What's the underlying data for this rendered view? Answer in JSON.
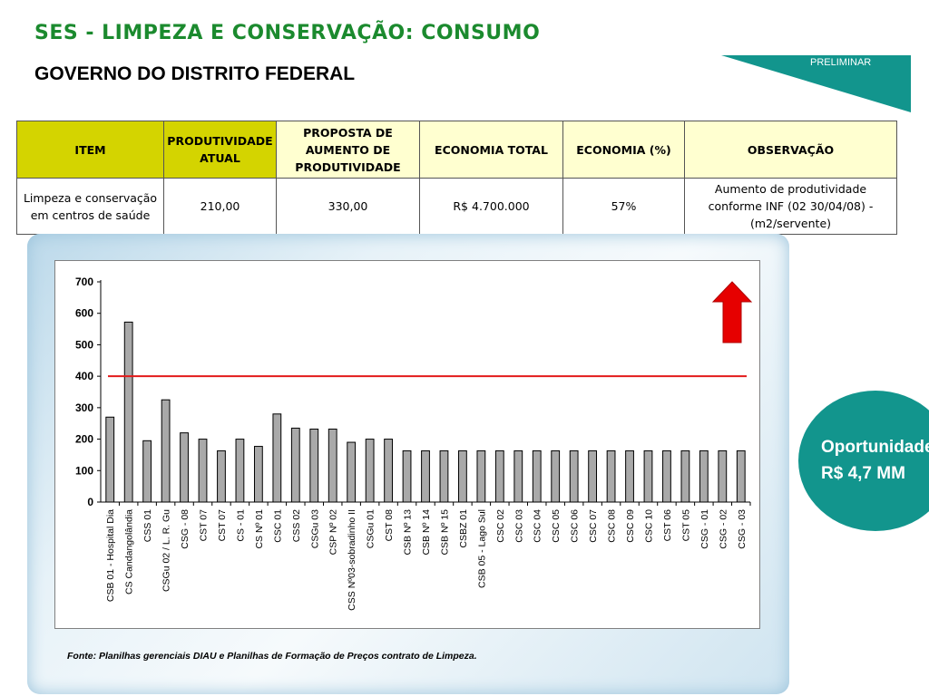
{
  "header": {
    "title": "SES - LIMPEZA E CONSERVAÇÃO: CONSUMO",
    "subtitle": "GOVERNO DO DISTRITO FEDERAL",
    "banner": "PRELIMINAR"
  },
  "colors": {
    "title_green": "#1b8a2e",
    "teal": "#12958d",
    "item_header_yellow": "#d4d400",
    "header_light_yellow": "#ffffd0",
    "target_line": "#e31a1a",
    "arrow": "#e60000",
    "bar_fill": "#a9a9a9"
  },
  "table": {
    "headers": [
      "ITEM",
      "PRODUTIVIDADE ATUAL",
      "PROPOSTA DE AUMENTO DE PRODUTIVIDADE",
      "ECONOMIA TOTAL",
      "ECONOMIA (%)",
      "OBSERVAÇÃO"
    ],
    "row": [
      "Limpeza e conservação em centros de saúde",
      "210,00",
      "330,00",
      "R$ 4.700.000",
      "57%",
      "Aumento de produtividade conforme INF (02 30/04/08) - (m2/servente)"
    ]
  },
  "opportunity": {
    "line1": "Oportunidade",
    "line2": "R$ 4,7 MM"
  },
  "source": "Fonte: Planilhas gerenciais DIAU e Planilhas de Formação de Preços contrato de Limpeza.",
  "icons": {
    "indicator": "up-arrow-icon"
  },
  "chart_data": {
    "type": "bar",
    "title": "",
    "xlabel": "",
    "ylabel": "",
    "ylim": [
      0,
      700
    ],
    "yticks": [
      0,
      100,
      200,
      300,
      400,
      500,
      600,
      700
    ],
    "grid": false,
    "reference_line": 400,
    "categories": [
      "CSB 01 - Hospital Dia",
      "CS Candangolândia",
      "CSS 01",
      "CSGu 02 / L. R. Gu",
      "CSG - 08",
      "CST 07",
      "CST 07",
      "CS - 01",
      "CS Nº 01",
      "CSC 01",
      "CSS 02",
      "CSGu 03",
      "CSP Nº 02",
      "CSS Nº03-sobradinho II",
      "CSGu 01",
      "CST 08",
      "CSB Nº 13",
      "CSB Nº 14",
      "CSB Nº 15",
      "CSBZ 01",
      "CSB 05 - Lago Sul",
      "CSC 02",
      "CSC 03",
      "CSC 04",
      "CSC 05",
      "CSC 06",
      "CSC 07",
      "CSC 08",
      "CSC 09",
      "CSC 10",
      "CST 06",
      "CST 05",
      "CSG - 01",
      "CSG - 02",
      "CSG - 03"
    ],
    "values": [
      270,
      572,
      195,
      325,
      220,
      200,
      163,
      200,
      177,
      280,
      235,
      232,
      232,
      190,
      200,
      200,
      163,
      163,
      163,
      163,
      163,
      163,
      163,
      163,
      163,
      163,
      163,
      163,
      163,
      163,
      163,
      163,
      163,
      163,
      163
    ]
  }
}
